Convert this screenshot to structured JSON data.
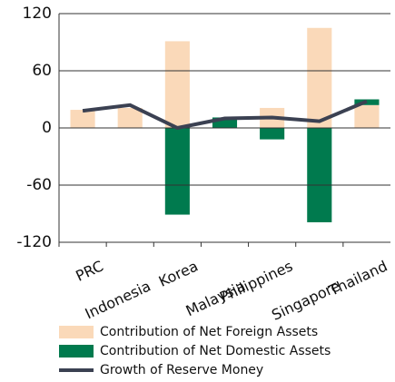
{
  "chart_data": {
    "type": "bar",
    "categories": [
      "PRC",
      "Indonesia",
      "Korea",
      "Malaysia",
      "Philippines",
      "Singapore",
      "Thailand"
    ],
    "series": [
      {
        "name": "Contribution of Net Foreign Assets",
        "color": "#fad9b9",
        "values": [
          19,
          21,
          91,
          0,
          21,
          105,
          24
        ]
      },
      {
        "name": "Contribution of Net Domestic Assets",
        "color": "#007a4e",
        "values": [
          0,
          0,
          -91,
          11,
          -12,
          -99,
          6
        ]
      },
      {
        "name": "Growth of Reserve Money",
        "color": "#3b4152",
        "type": "line",
        "values": [
          18,
          24,
          0,
          10,
          11,
          7,
          28
        ]
      }
    ],
    "ylim": [
      -120,
      120
    ],
    "yticks": [
      -120,
      -60,
      0,
      60,
      120
    ],
    "grid": true
  }
}
